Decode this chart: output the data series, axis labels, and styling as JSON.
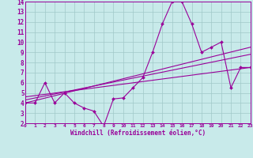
{
  "xlabel": "Windchill (Refroidissement éolien,°C)",
  "xlim": [
    0,
    23
  ],
  "ylim": [
    2,
    14
  ],
  "xticks": [
    0,
    1,
    2,
    3,
    4,
    5,
    6,
    7,
    8,
    9,
    10,
    11,
    12,
    13,
    14,
    15,
    16,
    17,
    18,
    19,
    20,
    21,
    22,
    23
  ],
  "yticks": [
    2,
    3,
    4,
    5,
    6,
    7,
    8,
    9,
    10,
    11,
    12,
    13,
    14
  ],
  "bg_color": "#c8eaea",
  "line_color": "#990099",
  "grid_color": "#a0c8c8",
  "main_x": [
    0,
    1,
    2,
    3,
    4,
    5,
    6,
    7,
    8,
    9,
    10,
    11,
    12,
    13,
    14,
    15,
    16,
    17,
    18,
    19,
    20,
    21,
    22,
    23
  ],
  "main_y": [
    4.0,
    4.0,
    6.0,
    4.0,
    5.0,
    4.0,
    3.5,
    3.2,
    1.7,
    4.4,
    4.5,
    5.5,
    6.5,
    9.0,
    11.8,
    14.0,
    14.0,
    11.8,
    9.0,
    9.5,
    10.0,
    5.5,
    7.5,
    7.5
  ],
  "trend1_x": [
    0,
    23
  ],
  "trend1_y": [
    4.0,
    9.5
  ],
  "trend2_x": [
    0,
    23
  ],
  "trend2_y": [
    4.3,
    8.8
  ],
  "trend3_x": [
    0,
    23
  ],
  "trend3_y": [
    4.6,
    7.5
  ]
}
